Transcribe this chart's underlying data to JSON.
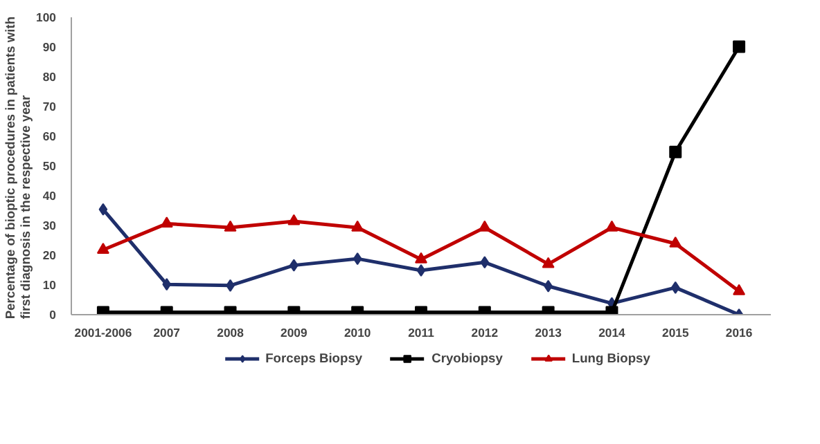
{
  "chart_data": {
    "type": "line",
    "ylabel": "Percentage of  bioptic procedures in patients with\nfirst diagnosis in the respective year",
    "categories": [
      "2001-2006",
      "2007",
      "2008",
      "2009",
      "2010",
      "2011",
      "2012",
      "2013",
      "2014",
      "2015",
      "2016"
    ],
    "ylim": [
      0,
      100
    ],
    "yticks": [
      0,
      10,
      20,
      30,
      40,
      50,
      60,
      70,
      80,
      90,
      100
    ],
    "grid": false,
    "legend": "bottom",
    "series": [
      {
        "name": "Forceps Biopsy",
        "color": "#1f2f6b",
        "marker": "diamond",
        "values": [
          35.4,
          10.2,
          9.8,
          16.6,
          18.8,
          14.9,
          17.6,
          9.6,
          3.8,
          9.1,
          0
        ]
      },
      {
        "name": "Cryobiopsy",
        "color": "#000000",
        "marker": "square",
        "values": [
          0.8,
          0.8,
          0.8,
          0.8,
          0.8,
          0.8,
          0.8,
          0.8,
          0.8,
          54.7,
          90.1
        ]
      },
      {
        "name": "Lung Biopsy",
        "color": "#c00000",
        "marker": "triangle",
        "values": [
          21.8,
          30.6,
          29.3,
          31.4,
          29.3,
          18.6,
          29.3,
          17.0,
          29.3,
          23.9,
          7.9
        ]
      }
    ]
  }
}
